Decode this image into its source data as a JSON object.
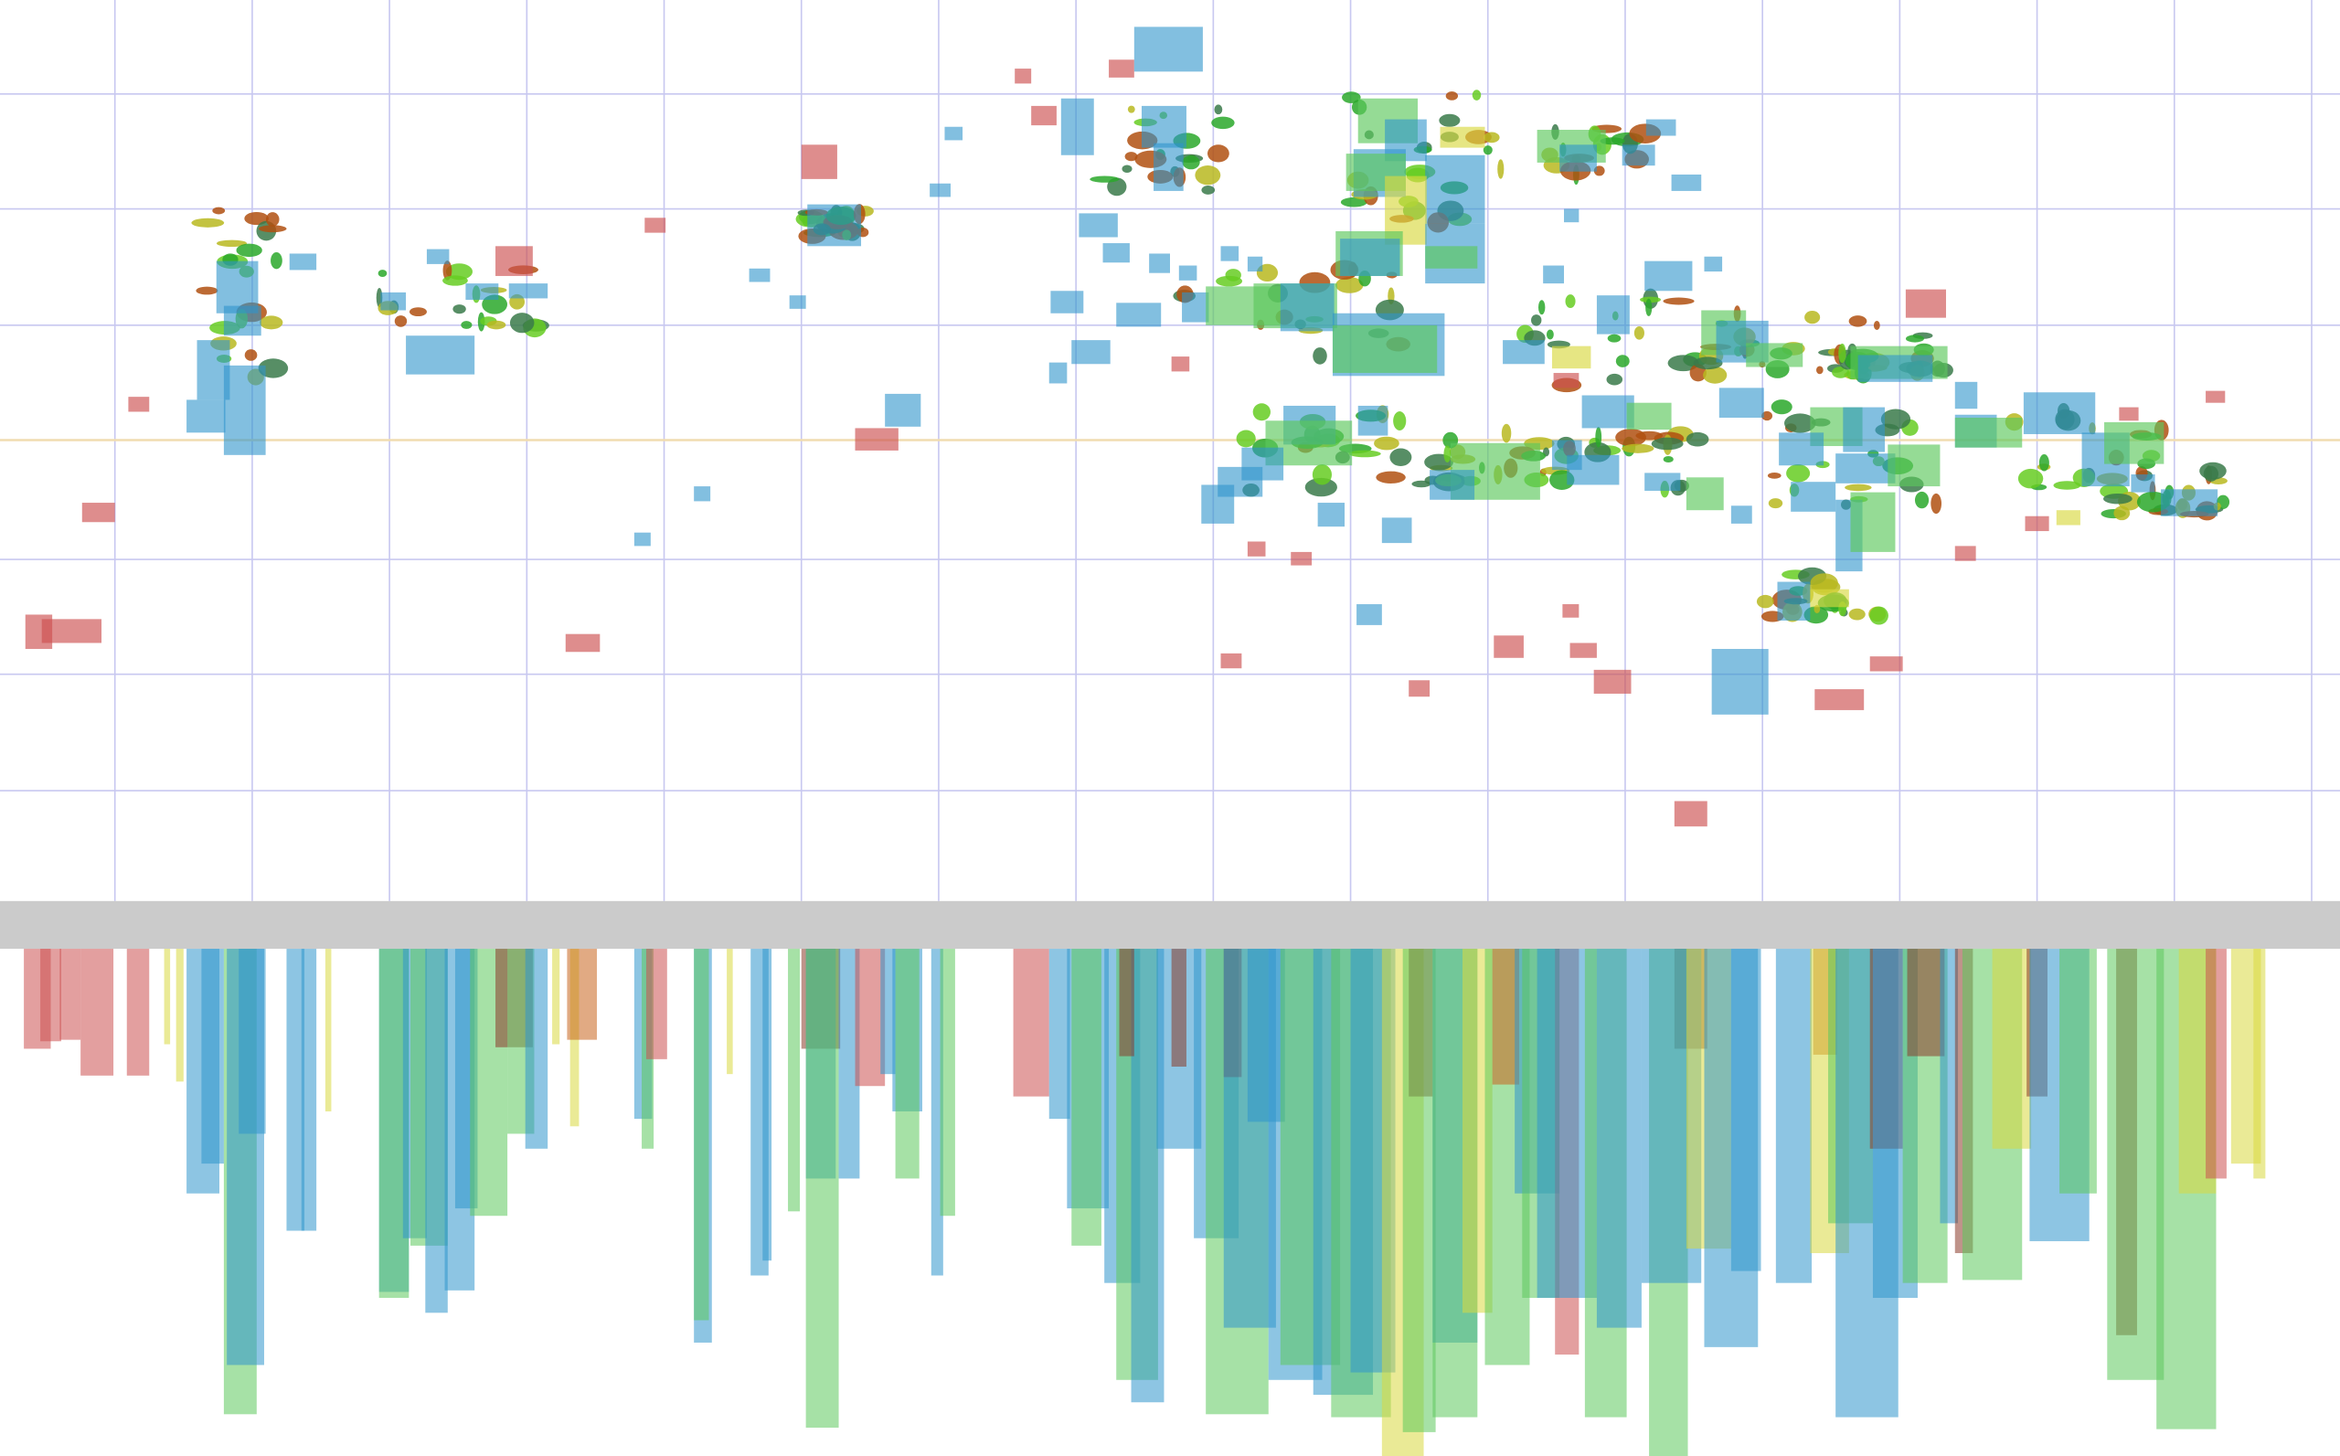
{
  "colors": {
    "background": "#ffffff",
    "grid": "#c8c8f0",
    "equator": "#f0dcb0",
    "divider": "#cbcbcb",
    "red": "#cc5050",
    "blue": "#2f95cc",
    "green": "#5cc85c",
    "yellow": "#d8d840",
    "brown": "#8a3a2a",
    "orange": "#c8641e",
    "terrain": [
      "#2aa82a",
      "#66cc22",
      "#b8b820",
      "#b05010",
      "#3a7a4a"
    ]
  },
  "layers": [
    "terrain-tiles",
    "red-tiles",
    "blue-tiles",
    "green-tiles",
    "yellow-tiles"
  ],
  "divider": {
    "role": "splitter"
  }
}
